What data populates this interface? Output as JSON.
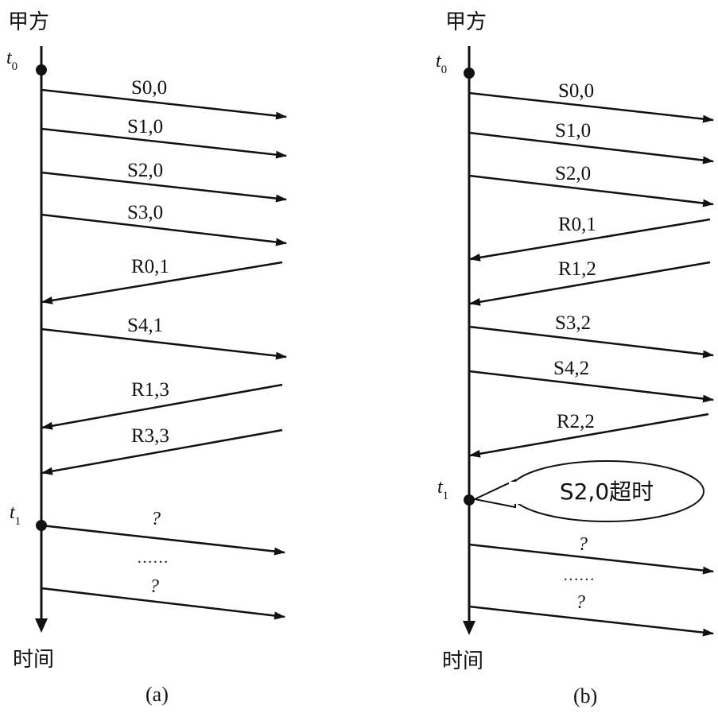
{
  "panels": [
    {
      "id": "a",
      "party": "甲方",
      "time_label": "时间",
      "caption": "(a)",
      "t0": "t",
      "t0_sub": "0",
      "t1": "t",
      "t1_sub": "1",
      "messages": [
        {
          "label": "S0,0",
          "dir": "out"
        },
        {
          "label": "S1,0",
          "dir": "out"
        },
        {
          "label": "S2,0",
          "dir": "out"
        },
        {
          "label": "S3,0",
          "dir": "out"
        },
        {
          "label": "R0,1",
          "dir": "in"
        },
        {
          "label": "S4,1",
          "dir": "out"
        },
        {
          "label": "R1,3",
          "dir": "in"
        },
        {
          "label": "R3,3",
          "dir": "in"
        },
        {
          "label": "?",
          "dir": "out"
        },
        {
          "label": "……",
          "dir": "none"
        },
        {
          "label": "?",
          "dir": "out"
        }
      ]
    },
    {
      "id": "b",
      "party": "甲方",
      "time_label": "时间",
      "caption": "(b)",
      "t0": "t",
      "t0_sub": "0",
      "t1": "t",
      "t1_sub": "1",
      "callout": "S2,0超时",
      "messages": [
        {
          "label": "S0,0",
          "dir": "out"
        },
        {
          "label": "S1,0",
          "dir": "out"
        },
        {
          "label": "S2,0",
          "dir": "out"
        },
        {
          "label": "R0,1",
          "dir": "in"
        },
        {
          "label": "R1,2",
          "dir": "in"
        },
        {
          "label": "S3,2",
          "dir": "out"
        },
        {
          "label": "S4,2",
          "dir": "out"
        },
        {
          "label": "R2,2",
          "dir": "in"
        },
        {
          "label": "?",
          "dir": "out"
        },
        {
          "label": "……",
          "dir": "none"
        },
        {
          "label": "?",
          "dir": "out"
        }
      ]
    }
  ]
}
